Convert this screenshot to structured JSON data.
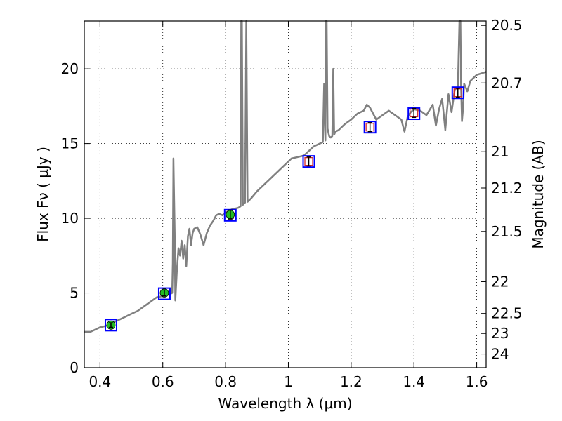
{
  "chart_data": {
    "type": "line",
    "title": "",
    "xlabel": "Wavelength  λ (μm)",
    "ylabel": "Flux  Fν  ( μJy )",
    "y2label": "Magnitude (AB)",
    "xlim": [
      0.35,
      1.63
    ],
    "ylim": [
      0,
      23.2
    ],
    "grid": true,
    "x_ticks": [
      0.4,
      0.6,
      0.8,
      1.0,
      1.2,
      1.4,
      1.6
    ],
    "x_tick_labels": [
      "0.4",
      "0.6",
      "0.8",
      "1",
      "1.2",
      "1.4",
      "1.6"
    ],
    "y_ticks": [
      0,
      5,
      10,
      15,
      20
    ],
    "y_tick_labels": [
      "0",
      "5",
      "10",
      "15",
      "20"
    ],
    "mag_ticks": [
      20.5,
      20.7,
      21,
      21.2,
      21.5,
      22,
      22.5,
      23,
      24
    ],
    "mag_tick_labels": [
      "20.5",
      "20.7",
      "21",
      "21.2",
      "21.5",
      "22",
      "22.5",
      "23",
      "24"
    ],
    "colors": {
      "model": "#808080",
      "model_box": "#0000ff",
      "observed_detected": "#22bb22",
      "observed_upper": "#d62728"
    },
    "model_spectrum": {
      "x": [
        0.35,
        0.37,
        0.38,
        0.39,
        0.4,
        0.42,
        0.44,
        0.46,
        0.48,
        0.5,
        0.52,
        0.54,
        0.56,
        0.58,
        0.6,
        0.62,
        0.63,
        0.632,
        0.634,
        0.638,
        0.64,
        0.645,
        0.65,
        0.655,
        0.66,
        0.665,
        0.67,
        0.675,
        0.68,
        0.685,
        0.69,
        0.695,
        0.7,
        0.71,
        0.72,
        0.73,
        0.74,
        0.75,
        0.76,
        0.765,
        0.77,
        0.78,
        0.79,
        0.8,
        0.82,
        0.84,
        0.848,
        0.85,
        0.852,
        0.855,
        0.858,
        0.862,
        0.866,
        0.87,
        0.88,
        0.9,
        0.92,
        0.94,
        0.96,
        0.98,
        1.0,
        1.01,
        1.03,
        1.05,
        1.07,
        1.08,
        1.09,
        1.1,
        1.11,
        1.114,
        1.118,
        1.12,
        1.122,
        1.125,
        1.13,
        1.135,
        1.14,
        1.143,
        1.146,
        1.15,
        1.16,
        1.18,
        1.2,
        1.22,
        1.24,
        1.25,
        1.26,
        1.28,
        1.3,
        1.32,
        1.34,
        1.36,
        1.37,
        1.38,
        1.39,
        1.4,
        1.42,
        1.44,
        1.46,
        1.47,
        1.48,
        1.49,
        1.5,
        1.51,
        1.52,
        1.53,
        1.54,
        1.545,
        1.548,
        1.55,
        1.553,
        1.556,
        1.56,
        1.57,
        1.58,
        1.6,
        1.63
      ],
      "y": [
        2.4,
        2.4,
        2.5,
        2.6,
        2.7,
        2.8,
        3.0,
        3.2,
        3.4,
        3.6,
        3.8,
        4.1,
        4.4,
        4.7,
        4.8,
        4.9,
        5.0,
        7.0,
        14.0,
        9.0,
        4.5,
        6.5,
        8.0,
        7.5,
        8.5,
        7.3,
        8.2,
        6.8,
        8.8,
        9.3,
        8.2,
        9.0,
        9.3,
        9.4,
        8.9,
        8.2,
        9.0,
        9.5,
        9.8,
        10.0,
        10.2,
        10.3,
        10.2,
        10.4,
        10.6,
        10.7,
        10.8,
        23.5,
        23.5,
        10.9,
        11.0,
        11.0,
        23.5,
        11.1,
        11.3,
        11.8,
        12.2,
        12.6,
        13.0,
        13.4,
        13.8,
        14.0,
        14.1,
        14.2,
        14.6,
        14.8,
        14.9,
        15.0,
        15.1,
        19.0,
        15.2,
        23.5,
        23.5,
        16.0,
        15.5,
        15.4,
        15.5,
        20.0,
        15.6,
        15.8,
        15.9,
        16.3,
        16.6,
        17.0,
        17.2,
        17.6,
        17.4,
        16.6,
        16.9,
        17.2,
        16.9,
        16.6,
        15.8,
        16.8,
        17.1,
        17.3,
        17.2,
        16.9,
        17.6,
        16.2,
        17.3,
        18.0,
        15.9,
        18.3,
        17.1,
        18.6,
        18.8,
        23.5,
        23.5,
        18.9,
        16.5,
        17.2,
        19.0,
        18.5,
        19.2,
        19.6,
        19.8
      ],
      "cut_off_peaks": [
        0.851,
        0.866,
        1.121,
        1.55
      ]
    },
    "photometry": [
      {
        "x": 0.435,
        "model": 2.85,
        "obs": 2.85,
        "err": 0.15,
        "kind": "detected"
      },
      {
        "x": 0.605,
        "model": 4.95,
        "obs": 5.0,
        "err": 0.2,
        "kind": "detected"
      },
      {
        "x": 0.815,
        "model": 10.2,
        "obs": 10.25,
        "err": 0.3,
        "kind": "detected"
      },
      {
        "x": 1.065,
        "model": 13.8,
        "obs": 13.8,
        "err": 0.3,
        "kind": "upper"
      },
      {
        "x": 1.26,
        "model": 16.1,
        "obs": 16.1,
        "err": 0.3,
        "kind": "upper"
      },
      {
        "x": 1.4,
        "model": 17.0,
        "obs": 17.05,
        "err": 0.3,
        "kind": "upper"
      },
      {
        "x": 1.54,
        "model": 18.4,
        "obs": 18.4,
        "err": 0.3,
        "kind": "upper"
      }
    ]
  }
}
